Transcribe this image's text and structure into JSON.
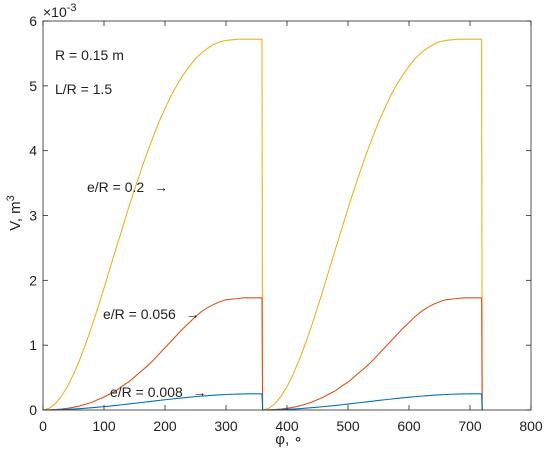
{
  "chart_data": {
    "type": "line",
    "title": "",
    "xlabel": "φ, ∘",
    "ylabel_base": "V, m",
    "ylabel_sup": "3",
    "y_multiplier_base": "×10",
    "y_multiplier_exp": "-3",
    "xlim": [
      0,
      800
    ],
    "ylim": [
      0,
      6
    ],
    "x_ticks": [
      0,
      100,
      200,
      300,
      400,
      500,
      600,
      700,
      800
    ],
    "y_ticks": [
      0,
      1,
      2,
      3,
      4,
      5,
      6
    ],
    "grid": false,
    "colors": {
      "yellow": "#EDB120",
      "red": "#D95319",
      "blue": "#0072BD",
      "axis": "#262626"
    },
    "annotations": {
      "params_R": "R = 0.15 m",
      "params_LR": "L/R = 1.5",
      "label_02": "e/R = 0.2",
      "label_0056": "e/R = 0.056",
      "label_0008": "e/R = 0.008",
      "arrow_glyph": "→"
    },
    "series": [
      {
        "color_key": "yellow",
        "e_over_R": 0.2,
        "peak": 5.72,
        "x": [
          0,
          10,
          20,
          30,
          40,
          50,
          60,
          70,
          80,
          90,
          100,
          110,
          120,
          130,
          140,
          150,
          160,
          170,
          180,
          190,
          200,
          210,
          220,
          230,
          240,
          250,
          260,
          270,
          280,
          290,
          300,
          310,
          320,
          330,
          340,
          350,
          359,
          360,
          370,
          380,
          390,
          400,
          410,
          420,
          430,
          440,
          450,
          460,
          470,
          480,
          490,
          500,
          510,
          520,
          530,
          540,
          550,
          560,
          570,
          580,
          590,
          600,
          610,
          620,
          630,
          640,
          650,
          660,
          670,
          680,
          690,
          700,
          710,
          719,
          720
        ],
        "y": [
          0,
          0.025,
          0.096,
          0.21,
          0.36,
          0.55,
          0.77,
          1.02,
          1.29,
          1.58,
          1.88,
          2.19,
          2.5,
          2.8,
          3.11,
          3.4,
          3.68,
          3.95,
          4.2,
          4.44,
          4.65,
          4.85,
          5.02,
          5.17,
          5.3,
          5.42,
          5.51,
          5.58,
          5.64,
          5.68,
          5.7,
          5.71,
          5.72,
          5.72,
          5.72,
          5.72,
          5.72,
          0,
          0.025,
          0.096,
          0.21,
          0.36,
          0.55,
          0.77,
          1.02,
          1.29,
          1.58,
          1.88,
          2.19,
          2.5,
          2.8,
          3.11,
          3.4,
          3.68,
          3.95,
          4.2,
          4.44,
          4.65,
          4.85,
          5.02,
          5.17,
          5.3,
          5.42,
          5.51,
          5.58,
          5.64,
          5.68,
          5.7,
          5.71,
          5.72,
          5.72,
          5.72,
          5.72,
          5.72,
          0
        ]
      },
      {
        "color_key": "red",
        "e_over_R": 0.056,
        "peak": 1.73,
        "x": [
          0,
          10,
          20,
          30,
          40,
          50,
          60,
          70,
          80,
          90,
          100,
          110,
          120,
          130,
          140,
          150,
          160,
          170,
          180,
          190,
          200,
          210,
          220,
          230,
          240,
          250,
          260,
          270,
          280,
          290,
          300,
          310,
          320,
          330,
          340,
          350,
          359,
          360,
          370,
          380,
          390,
          400,
          410,
          420,
          430,
          440,
          450,
          460,
          470,
          480,
          490,
          500,
          510,
          520,
          530,
          540,
          550,
          560,
          570,
          580,
          590,
          600,
          610,
          620,
          630,
          640,
          650,
          660,
          670,
          680,
          690,
          700,
          710,
          719,
          720
        ],
        "y": [
          0,
          0.0015,
          0.006,
          0.014,
          0.026,
          0.042,
          0.063,
          0.089,
          0.12,
          0.16,
          0.2,
          0.25,
          0.3,
          0.37,
          0.43,
          0.51,
          0.59,
          0.67,
          0.76,
          0.86,
          0.96,
          1.06,
          1.16,
          1.26,
          1.35,
          1.44,
          1.52,
          1.58,
          1.63,
          1.67,
          1.7,
          1.71,
          1.72,
          1.73,
          1.73,
          1.73,
          1.73,
          0,
          0.0015,
          0.006,
          0.014,
          0.026,
          0.042,
          0.063,
          0.089,
          0.12,
          0.16,
          0.2,
          0.25,
          0.3,
          0.37,
          0.43,
          0.51,
          0.59,
          0.67,
          0.76,
          0.86,
          0.96,
          1.06,
          1.16,
          1.26,
          1.35,
          1.44,
          1.52,
          1.58,
          1.63,
          1.67,
          1.7,
          1.71,
          1.72,
          1.73,
          1.73,
          1.73,
          1.73,
          0
        ]
      },
      {
        "color_key": "blue",
        "e_over_R": 0.008,
        "peak": 0.25,
        "x": [
          0,
          10,
          20,
          30,
          40,
          50,
          60,
          70,
          80,
          90,
          100,
          110,
          120,
          130,
          140,
          150,
          160,
          170,
          180,
          190,
          200,
          210,
          220,
          230,
          240,
          250,
          260,
          270,
          280,
          290,
          300,
          310,
          320,
          330,
          340,
          350,
          359,
          360,
          370,
          380,
          390,
          400,
          410,
          420,
          430,
          440,
          450,
          460,
          470,
          480,
          490,
          500,
          510,
          520,
          530,
          540,
          550,
          560,
          570,
          580,
          590,
          600,
          610,
          620,
          630,
          640,
          650,
          660,
          670,
          680,
          690,
          700,
          710,
          719,
          720
        ],
        "y": [
          0,
          0.001,
          0.003,
          0.006,
          0.01,
          0.015,
          0.021,
          0.028,
          0.035,
          0.043,
          0.052,
          0.061,
          0.071,
          0.081,
          0.092,
          0.103,
          0.114,
          0.125,
          0.136,
          0.147,
          0.158,
          0.168,
          0.178,
          0.188,
          0.197,
          0.206,
          0.214,
          0.221,
          0.228,
          0.234,
          0.239,
          0.243,
          0.246,
          0.248,
          0.25,
          0.25,
          0.25,
          0,
          0.001,
          0.003,
          0.006,
          0.01,
          0.015,
          0.021,
          0.028,
          0.035,
          0.043,
          0.052,
          0.061,
          0.071,
          0.081,
          0.092,
          0.103,
          0.114,
          0.125,
          0.136,
          0.147,
          0.158,
          0.168,
          0.178,
          0.188,
          0.197,
          0.206,
          0.214,
          0.221,
          0.228,
          0.234,
          0.239,
          0.243,
          0.246,
          0.248,
          0.25,
          0.25,
          0.25,
          0
        ]
      }
    ]
  }
}
